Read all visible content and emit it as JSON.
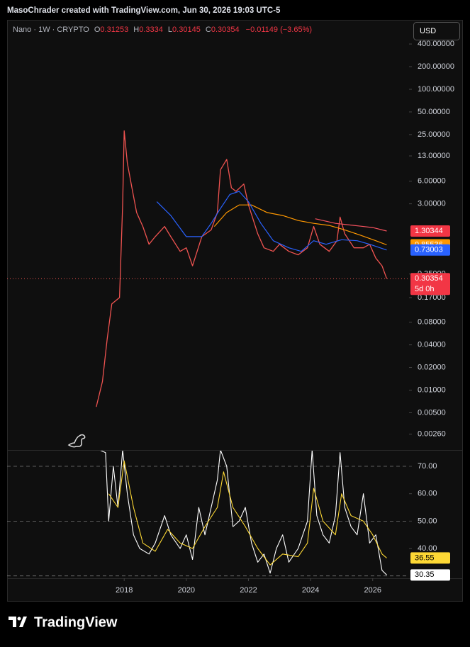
{
  "header": {
    "attribution": "MasoChrader created with TradingView.com, Jun 30, 2026 19:03 UTC-5"
  },
  "brand": "TradingView",
  "chart_data": [
    {
      "type": "line",
      "legend": {
        "symbol": "Nano · 1W · CRYPTO",
        "ohlc": [
          {
            "label": "O",
            "value": 0.31253
          },
          {
            "label": "H",
            "value": 0.3334
          },
          {
            "label": "L",
            "value": 0.30145
          },
          {
            "label": "C",
            "value": 0.30354
          }
        ],
        "change": "−0.01149 (−3.65%)"
      },
      "currency": "USD",
      "countdown": "5d 0h",
      "log_scale": true,
      "xlim": [
        2014.23,
        2027.17
      ],
      "ylim": [
        0.0016,
        520
      ],
      "yticks": [
        {
          "value": 400,
          "label": "400.00000"
        },
        {
          "value": 200,
          "label": "200.00000"
        },
        {
          "value": 100,
          "label": "100.00000"
        },
        {
          "value": 50,
          "label": "50.00000"
        },
        {
          "value": 25,
          "label": "25.00000"
        },
        {
          "value": 13,
          "label": "13.00000"
        },
        {
          "value": 6,
          "label": "6.00000"
        },
        {
          "value": 3,
          "label": "3.00000"
        },
        {
          "value": 0.35,
          "label": "0.35000"
        },
        {
          "value": 0.17,
          "label": "0.17000"
        },
        {
          "value": 0.08,
          "label": "0.08000"
        },
        {
          "value": 0.04,
          "label": "0.04000"
        },
        {
          "value": 0.02,
          "label": "0.02000"
        },
        {
          "value": 0.01,
          "label": "0.01000"
        },
        {
          "value": 0.005,
          "label": "0.00500"
        },
        {
          "value": 0.0026,
          "label": "0.00260"
        }
      ],
      "last_price_line": true,
      "series": [
        {
          "color": "#ef5350",
          "width": 1.3,
          "x": [
            2017.1,
            2017.3,
            2017.45,
            2017.6,
            2017.85,
            2017.95,
            2018.0,
            2018.1,
            2018.25,
            2018.4,
            2018.6,
            2018.8,
            2019.0,
            2019.3,
            2019.5,
            2019.8,
            2020.0,
            2020.2,
            2020.5,
            2020.8,
            2021.0,
            2021.1,
            2021.3,
            2021.45,
            2021.6,
            2021.85,
            2022.0,
            2022.3,
            2022.5,
            2022.8,
            2023.0,
            2023.3,
            2023.6,
            2023.9,
            2024.1,
            2024.3,
            2024.6,
            2024.85,
            2024.95,
            2025.1,
            2025.4,
            2025.7,
            2025.9,
            2026.1,
            2026.3,
            2026.45
          ],
          "values": [
            0.006,
            0.013,
            0.047,
            0.14,
            0.17,
            2.9,
            28,
            10.5,
            4.9,
            2.3,
            1.5,
            0.87,
            1.1,
            1.5,
            1.1,
            0.7,
            0.78,
            0.45,
            1.1,
            1.35,
            2.3,
            8.5,
            11.7,
            4.9,
            4.4,
            5.5,
            2.9,
            1.2,
            0.78,
            0.7,
            0.87,
            0.7,
            0.63,
            0.78,
            1.5,
            0.87,
            0.7,
            0.97,
            2.0,
            1.2,
            0.78,
            0.78,
            0.87,
            0.57,
            0.45,
            0.30354
          ],
          "badge": true,
          "badge_color": "#f23645"
        },
        {
          "color": "#f7525f",
          "width": 1.2,
          "x": [
            2024.15,
            2024.8,
            2025.4,
            2026.0,
            2026.45
          ],
          "values": [
            1.9,
            1.65,
            1.55,
            1.45,
            1.30344
          ],
          "badge": true,
          "badge_color": "#f23645"
        },
        {
          "color": "#ff9800",
          "width": 1.2,
          "x": [
            2020.9,
            2021.3,
            2021.7,
            2022.1,
            2022.6,
            2023.1,
            2023.6,
            2024.1,
            2024.6,
            2025.1,
            2025.6,
            2026.1,
            2026.45
          ],
          "values": [
            1.5,
            2.3,
            2.9,
            2.9,
            2.3,
            2.1,
            1.8,
            1.65,
            1.55,
            1.35,
            1.15,
            0.97,
            0.85536
          ],
          "badge": true,
          "badge_color": "#ff9800"
        },
        {
          "color": "#2962ff",
          "width": 1.2,
          "x": [
            2019.05,
            2019.5,
            2020.0,
            2020.5,
            2020.8,
            2021.1,
            2021.4,
            2021.7,
            2022.0,
            2022.4,
            2022.8,
            2023.3,
            2023.7,
            2024.1,
            2024.5,
            2025.0,
            2025.5,
            2025.9,
            2026.45
          ],
          "values": [
            3.2,
            2.1,
            1.1,
            1.1,
            1.65,
            2.6,
            4,
            4.4,
            3.2,
            1.65,
            0.97,
            0.78,
            0.7,
            0.97,
            0.87,
            1.0,
            0.97,
            0.87,
            0.73003
          ],
          "badge": true,
          "badge_color": "#2962ff"
        }
      ]
    },
    {
      "type": "line",
      "xlim": [
        2014.23,
        2027.17
      ],
      "ylim": [
        29.4,
        75.7
      ],
      "xticks": [
        2018,
        2020,
        2022,
        2024,
        2026
      ],
      "yticks": [
        {
          "value": 70,
          "label": "70.00"
        },
        {
          "value": 60,
          "label": "60.00"
        },
        {
          "value": 50,
          "label": "50.00"
        },
        {
          "value": 40,
          "label": "40.00"
        }
      ],
      "bands": [
        70,
        50,
        30
      ],
      "series": [
        {
          "color": "#ffffff",
          "width": 1.1,
          "x": [
            2017.2,
            2017.4,
            2017.5,
            2017.65,
            2017.8,
            2017.95,
            2018.1,
            2018.3,
            2018.5,
            2018.8,
            2019.0,
            2019.3,
            2019.5,
            2019.8,
            2020.0,
            2020.2,
            2020.4,
            2020.6,
            2020.8,
            2021.0,
            2021.1,
            2021.3,
            2021.5,
            2021.7,
            2021.9,
            2022.1,
            2022.3,
            2022.5,
            2022.7,
            2022.9,
            2023.1,
            2023.3,
            2023.6,
            2023.9,
            2024.05,
            2024.2,
            2024.4,
            2024.6,
            2024.8,
            2024.95,
            2025.1,
            2025.3,
            2025.5,
            2025.7,
            2025.9,
            2026.1,
            2026.3,
            2026.45
          ],
          "values": [
            76,
            75,
            50,
            70,
            55,
            76,
            60,
            45,
            40,
            38,
            42,
            52,
            45,
            40,
            45,
            36,
            55,
            45,
            55,
            65,
            76,
            70,
            48,
            50,
            55,
            42,
            35,
            38,
            31,
            40,
            45,
            35,
            40,
            50,
            76,
            52,
            45,
            42,
            52,
            75,
            55,
            48,
            45,
            60,
            42,
            45,
            32,
            30.35
          ],
          "badge": true,
          "badge_color": "#ffffff"
        },
        {
          "color": "#fdd835",
          "width": 1.1,
          "x": [
            2017.5,
            2017.8,
            2018.0,
            2018.3,
            2018.6,
            2019.0,
            2019.4,
            2019.8,
            2020.2,
            2020.6,
            2021.0,
            2021.2,
            2021.5,
            2021.9,
            2022.3,
            2022.7,
            2023.1,
            2023.6,
            2023.9,
            2024.1,
            2024.4,
            2024.8,
            2025.0,
            2025.3,
            2025.7,
            2026.0,
            2026.3,
            2026.45
          ],
          "values": [
            60,
            55,
            72,
            55,
            42,
            39,
            47,
            42,
            40,
            48,
            55,
            68,
            55,
            48,
            40,
            34,
            38,
            37,
            42,
            62,
            50,
            45,
            60,
            52,
            50,
            45,
            38,
            36.55
          ],
          "badge": true,
          "badge_color": "#fdd835"
        }
      ]
    }
  ]
}
